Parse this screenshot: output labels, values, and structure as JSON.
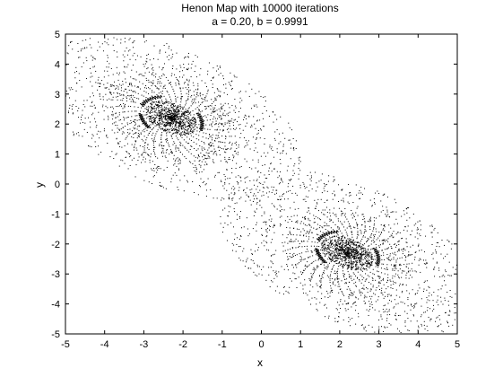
{
  "chart_data": {
    "type": "scatter",
    "title": "Henon Map with 10000 iterations",
    "subtitle": "a = 0.20, b = 0.9991",
    "xlabel": "x",
    "ylabel": "y",
    "xlim": [
      -5,
      5
    ],
    "ylim": [
      -5,
      5
    ],
    "xticks": [
      -5,
      -4,
      -3,
      -2,
      -1,
      0,
      1,
      2,
      3,
      4,
      5
    ],
    "yticks": [
      -5,
      -4,
      -3,
      -2,
      -1,
      0,
      1,
      2,
      3,
      4,
      5
    ],
    "grid": false,
    "legend": "none",
    "series_color": "#000000",
    "clusters": [
      {
        "center": [
          -2.3,
          2.2
        ],
        "spread": [
          1.3,
          1.3
        ],
        "orientation_deg": -35,
        "points": 2000
      },
      {
        "center": [
          2.2,
          -2.3
        ],
        "spread": [
          1.3,
          1.3
        ],
        "orientation_deg": -35,
        "points": 2000
      }
    ],
    "total_iterations": 10000
  }
}
